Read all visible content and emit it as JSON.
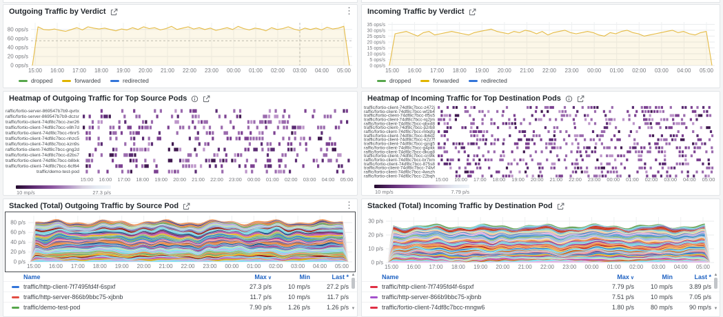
{
  "theme": {
    "page_bg": "#f4f5f6",
    "panel_bg": "#ffffff",
    "panel_border": "#e2e5e8",
    "title_color": "#24292e",
    "axis_color": "#77797e",
    "link_color": "#1f62c2",
    "grid_color": "#e9ebed",
    "heatmap_dark": "#40194f",
    "heatmap_light": "#eff3f8"
  },
  "time_ticks": [
    "15:00",
    "16:00",
    "17:00",
    "18:00",
    "19:00",
    "20:00",
    "21:00",
    "22:00",
    "23:00",
    "00:00",
    "01:00",
    "02:00",
    "03:00",
    "04:00",
    "05:00"
  ],
  "chart_data": {
    "outgoing_verdict": {
      "type": "line",
      "title": "Outgoing Traffic by Verdict",
      "ylabel": "ops/s",
      "ylim": [
        0,
        95
      ],
      "y_ticks": [
        {
          "v": 0,
          "t": "0 ops/s"
        },
        {
          "v": 20,
          "t": "20 ops/s"
        },
        {
          "v": 40,
          "t": "40 ops/s"
        },
        {
          "v": 60,
          "t": "60 ops/s"
        },
        {
          "v": 80,
          "t": "80 ops/s"
        }
      ],
      "series_color": "#e5bb45",
      "fill_color": "rgba(229,187,69,0.12)",
      "dashed_h": 55,
      "dashed_v_tick": 12,
      "legend": [
        {
          "label": "dropped",
          "color": "#56a64b"
        },
        {
          "label": "forwarded",
          "color": "#e0b400"
        },
        {
          "label": "redirected",
          "color": "#3274d9"
        }
      ],
      "values": [
        0,
        86,
        80,
        79,
        81,
        78,
        76,
        80,
        84,
        79,
        86,
        83,
        81,
        83,
        80,
        77,
        81,
        79,
        84,
        80,
        86,
        82,
        84,
        79,
        82,
        87,
        80,
        83,
        86,
        81,
        84,
        80,
        83,
        78,
        81,
        84,
        80,
        87,
        82,
        79,
        83,
        81,
        77,
        84,
        80,
        82,
        86,
        81,
        78,
        83,
        80,
        83,
        79,
        85,
        81,
        83,
        87,
        0
      ]
    },
    "incoming_verdict": {
      "type": "line",
      "title": "Incoming Traffic by Verdict",
      "ylabel": "ops/s",
      "ylim": [
        0,
        37
      ],
      "y_ticks": [
        {
          "v": 0,
          "t": "0 ops/s"
        },
        {
          "v": 5,
          "t": "5 ops/s"
        },
        {
          "v": 10,
          "t": "10 ops/s"
        },
        {
          "v": 15,
          "t": "15 ops/s"
        },
        {
          "v": 20,
          "t": "20 ops/s"
        },
        {
          "v": 25,
          "t": "25 ops/s"
        },
        {
          "v": 30,
          "t": "30 ops/s"
        },
        {
          "v": 35,
          "t": "35 ops/s"
        }
      ],
      "series_color": "#e5bb45",
      "fill_color": "rgba(229,187,69,0.12)",
      "legend": [
        {
          "label": "dropped",
          "color": "#56a64b"
        },
        {
          "label": "forwarded",
          "color": "#e0b400"
        },
        {
          "label": "redirected",
          "color": "#3274d9"
        }
      ],
      "values": [
        0,
        27,
        28,
        29,
        27,
        25,
        28,
        29,
        26,
        27,
        28,
        29,
        28,
        27,
        26,
        28,
        29,
        30,
        31,
        29,
        28,
        27,
        29,
        28,
        30,
        29,
        27,
        29,
        26,
        28,
        29,
        30,
        28,
        27,
        28,
        29,
        28,
        26,
        25,
        28,
        27,
        29,
        30,
        28,
        27,
        25,
        26,
        27,
        28,
        29,
        30,
        28,
        29,
        27,
        26,
        28,
        29,
        0
      ]
    },
    "outgoing_heatmap": {
      "type": "heatmap",
      "title": "Heatmap of Outgoing Traffic for Top Source Pods",
      "scale_min": "10 mp/s",
      "scale_max": "27.3 p/s",
      "seed": 11,
      "rows": [
        "raffic/fortio-server-869547b7b9-qvrtx",
        "raffic/fortio-server-869547b7b9-dczsr",
        "traffic/fortio-client-74df8c7bcc-zwr26",
        "traffic/fortio-client-74df8c7bcc-v8h7d",
        "traffic/fortio-client-74df8c7bcc-r6nr5",
        "traffic/fortio-client-74df8c7bcc-nhzc5",
        "traffic/fortio-client-74df8c7bcc-kzn9s",
        "raffic/fortio-client-74df8c7bcc-gng2d",
        "traffic/fortio-client-74df8c7bcc-d2bs7",
        "traffic/fortio-client-74df8c7bcc-b8lxk",
        "traffic/fortio-client-74df8c7bcc-6cf64",
        "traffic/demo-test-pod"
      ]
    },
    "incoming_heatmap": {
      "type": "heatmap",
      "title": "Heatmap of Incoming Traffic for Top Destination Pods",
      "scale_min": "10 mp/s",
      "scale_max": "7.79 p/s",
      "seed": 23,
      "rows": [
        "traffic/fortio-client-74df8c7bcc-z472j",
        "raffic/fortio-client-74df8c7bcc-wf2b4",
        "traffic/fortio-client-74df8c7bcc-tf5s5",
        "traffic/fortio-client-74df8c7bcc-rq2jm",
        "raffic/fortio-client-74df8c7bcc-qbxd8",
        "traffic/fortio-client-74df8c7bcc-p2rb8",
        "raffic/fortio-client-74df8c7bcc-mbqfg",
        "traffic/fortio-client-74df8c7bcc-lb6dz",
        "traffic/fortio-client-74df8c7bcc-k2z7f",
        "traffic/fortio-client-74df8c7bcc-gzqj5",
        "raffic/fortio-client-74df8c7bcc-g4pkk",
        "raffic/fortio-client-74df8c7bcc-dkuq8",
        "traffic/fortio-client-74df8c7bcc-cn9lk",
        "raffic/fortio-client-74df8c7bcc-br7km",
        "traffic/fortio-client-74df8c7bcc-875s8",
        "traffic/fortio-client-74df8c7bcc-74lvf",
        "raffic/fortio-client-74df8c7bcc-4wszh",
        "raffic/fortio-client-74df8c7bcc-22bqh"
      ]
    },
    "outgoing_stacked": {
      "type": "area",
      "title": "Stacked (Total) Outgoing Traffic by Source Pod",
      "ylabel": "p/s",
      "ylim": [
        0,
        94
      ],
      "total": 86,
      "layers": 42,
      "seed": 5,
      "y_ticks": [
        {
          "v": 0,
          "t": "0 p/s"
        },
        {
          "v": 20,
          "t": "20 p/s"
        },
        {
          "v": 40,
          "t": "40 p/s"
        },
        {
          "v": 60,
          "t": "60 p/s"
        },
        {
          "v": 80,
          "t": "80 p/s"
        }
      ],
      "table": {
        "headers": {
          "name": "Name",
          "max": "Max",
          "min": "Min",
          "last": "Last *"
        },
        "rows": [
          {
            "color": "#3274d9",
            "name": "traffic/http-client-7f7495fd4f-6spxf",
            "max": "27.3 p/s",
            "min": "10 mp/s",
            "last": "27.2 p/s"
          },
          {
            "color": "#e24d42",
            "name": "traffic/http-server-866b9bbc75-xjbnb",
            "max": "11.7 p/s",
            "min": "10 mp/s",
            "last": "11.7 p/s"
          },
          {
            "color": "#56a64b",
            "name": "traffic/demo-test-pod",
            "max": "7.90 p/s",
            "min": "1.26 p/s",
            "last": "1.26 p/s"
          }
        ]
      }
    },
    "incoming_stacked": {
      "type": "area",
      "title": "Stacked (Total) Incoming Traffic by Destination Pod",
      "ylabel": "p/s",
      "ylim": [
        0,
        33
      ],
      "total": 28,
      "layers": 40,
      "seed": 9,
      "y_ticks": [
        {
          "v": 0,
          "t": "0 p/s"
        },
        {
          "v": 10,
          "t": "10 p/s"
        },
        {
          "v": 20,
          "t": "20 p/s"
        },
        {
          "v": 30,
          "t": "30 p/s"
        }
      ],
      "table": {
        "headers": {
          "name": "Name",
          "max": "Max",
          "min": "Min",
          "last": "Last *"
        },
        "rows": [
          {
            "color": "#e02f44",
            "name": "traffic/http-client-7f7495fd4f-6spxf",
            "max": "7.79 p/s",
            "min": "10 mp/s",
            "last": "3.89 p/s"
          },
          {
            "color": "#a352cc",
            "name": "traffic/http-server-866b9bbc75-xjbnb",
            "max": "7.51 p/s",
            "min": "10 mp/s",
            "last": "7.05 p/s"
          },
          {
            "color": "#e02f44",
            "name": "traffic/fortio-client-74df8c7bcc-mngw6",
            "max": "1.80 p/s",
            "min": "80 mp/s",
            "last": "90 mp/s"
          }
        ]
      }
    },
    "stack_palette": [
      "#7eb26d",
      "#eab839",
      "#6ed0e0",
      "#ef843c",
      "#e24d42",
      "#1f78c1",
      "#ba43a9",
      "#705da0",
      "#508642",
      "#cca300",
      "#447ebc",
      "#c15c17",
      "#890f02",
      "#0a437c",
      "#6d1f62",
      "#584477",
      "#b7dbab",
      "#f4d598",
      "#70dbed",
      "#f9ba8f",
      "#f29191",
      "#82b5d8",
      "#e5a8e2",
      "#aea2e0",
      "#629e51",
      "#e5ac0e",
      "#64b0c8",
      "#e0752d",
      "#bf1b00",
      "#5195ce",
      "#962d82",
      "#614d93"
    ],
    "heat_palette": [
      "#9b6bae",
      "#7c4191",
      "#5b2c73",
      "#bc95c9",
      "#40194f"
    ]
  }
}
